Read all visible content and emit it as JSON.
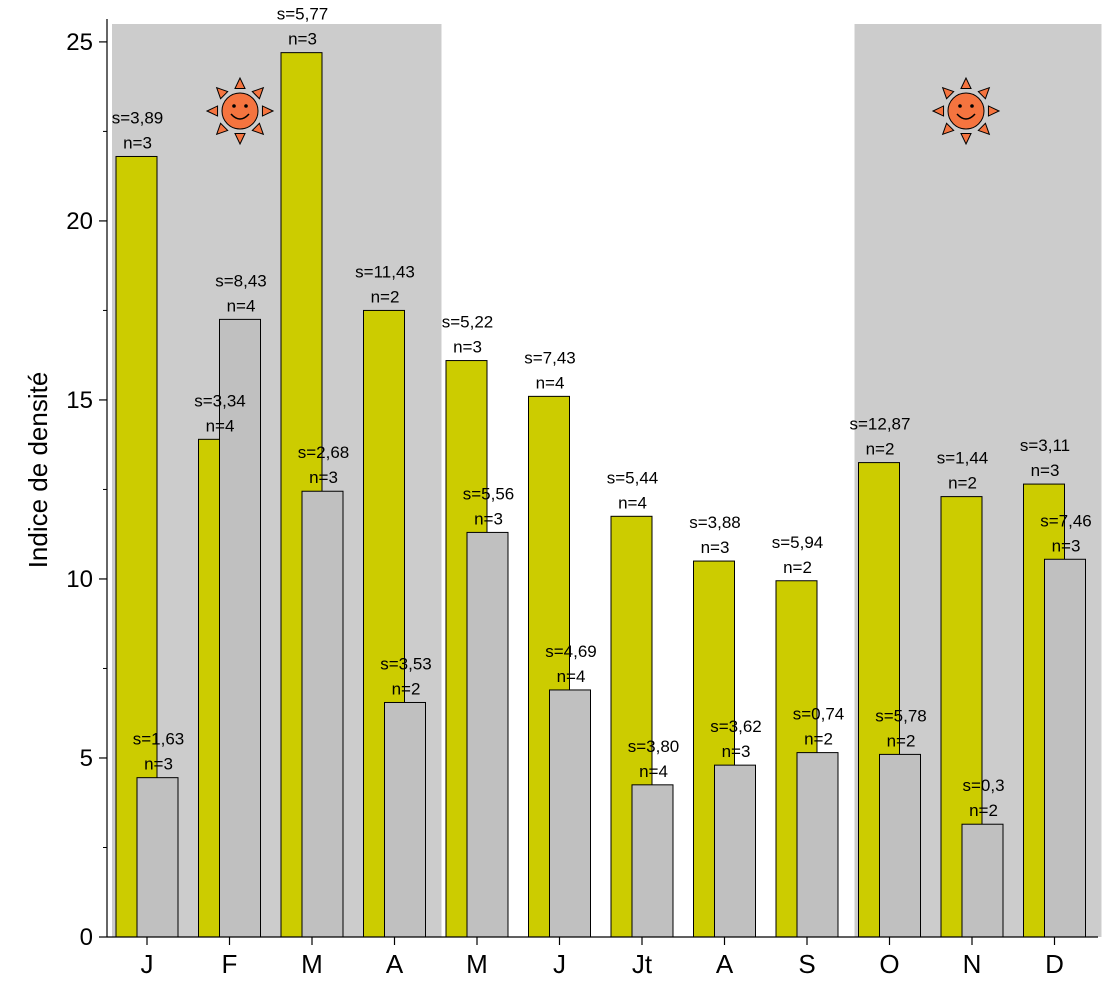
{
  "chart_data": {
    "type": "bar",
    "title": "",
    "xlabel": "",
    "ylabel": "Indice de densité",
    "ylim": [
      0,
      25.5
    ],
    "yticks": [
      0,
      5,
      10,
      15,
      20,
      25
    ],
    "ytick_labels": [
      "0",
      "5",
      "10",
      "15",
      "20",
      "25"
    ],
    "grid": false,
    "categories": [
      "J",
      "F",
      "M",
      "A",
      "M",
      "J",
      "Jt",
      "A",
      "S",
      "O",
      "N",
      "D"
    ],
    "series": [
      {
        "color": "#cccc00",
        "values": [
          21.8,
          13.9,
          24.7,
          17.5,
          16.1,
          15.1,
          11.75,
          10.5,
          9.95,
          13.25,
          12.3,
          12.65
        ],
        "annotations": [
          [
            "s=3,89",
            "n=3"
          ],
          [
            "s=3,34",
            "n=4"
          ],
          [
            "s=5,77",
            "n=3"
          ],
          [
            "s=11,43",
            "n=2"
          ],
          [
            "s=5,22",
            "n=3"
          ],
          [
            "s=7,43",
            "n=4"
          ],
          [
            "s=5,44",
            "n=4"
          ],
          [
            "s=3,88",
            "n=3"
          ],
          [
            "s=5,94",
            "n=2"
          ],
          [
            "s=12,87",
            "n=2"
          ],
          [
            "s=1,44",
            "n=2"
          ],
          [
            "s=3,11",
            "n=3"
          ]
        ]
      },
      {
        "color": "#c0c0c0",
        "values": [
          4.45,
          17.25,
          12.45,
          6.55,
          11.3,
          6.9,
          4.25,
          4.8,
          5.15,
          5.1,
          3.15,
          10.55
        ],
        "annotations": [
          [
            "s=1,63",
            "n=3"
          ],
          [
            "s=8,43",
            "n=4"
          ],
          [
            "s=2,68",
            "n=3"
          ],
          [
            "s=3,53",
            "n=2"
          ],
          [
            "s=5,56",
            "n=3"
          ],
          [
            "s=4,69",
            "n=4"
          ],
          [
            "s=3,80",
            "n=4"
          ],
          [
            "s=3,62",
            "n=3"
          ],
          [
            "s=0,74",
            "n=2"
          ],
          [
            "s=5,78",
            "n=2"
          ],
          [
            "s=0,3",
            "n=2"
          ],
          [
            "s=7,46",
            "n=3"
          ]
        ]
      }
    ],
    "shaded_periods": [
      {
        "from_category": 0,
        "to_category": 3,
        "color": "#cccccc",
        "icon": "sun-icon"
      },
      {
        "from_category": 9,
        "to_category": 11,
        "color": "#cccccc",
        "icon": "sun-icon"
      }
    ]
  }
}
